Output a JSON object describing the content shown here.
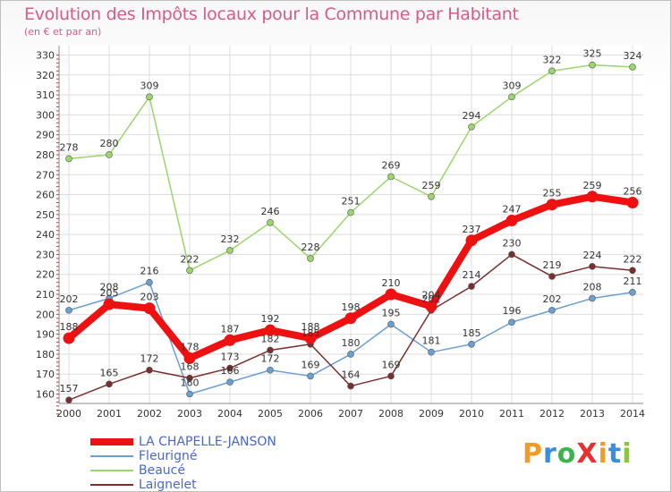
{
  "title": "Evolution des Impôts locaux pour la Commune par Habitant",
  "subtitle": "(en € et par an)",
  "logo": {
    "text": "ProXiti",
    "colors": [
      "#f29b22",
      "#3a8fd8",
      "#3ab54a",
      "#e8302f",
      "#f29b22",
      "#3a8fd8",
      "#8cc63f"
    ]
  },
  "chart_data": {
    "type": "line",
    "x": [
      "2000",
      "2001",
      "2002",
      "2003",
      "2004",
      "2005",
      "2006",
      "2007",
      "2008",
      "2009",
      "2010",
      "2011",
      "2012",
      "2013",
      "2014"
    ],
    "ylim": [
      150,
      330
    ],
    "yticks": [
      160,
      170,
      180,
      190,
      200,
      210,
      220,
      230,
      240,
      250,
      260,
      270,
      280,
      290,
      300,
      310,
      320,
      330
    ],
    "grid": true,
    "legend_position": "bottom-left",
    "series": [
      {
        "name": "LA CHAPELLE-JANSON",
        "color": "#ee1111",
        "values": [
          188,
          205,
          203,
          178,
          187,
          192,
          188,
          198,
          210,
          204,
          237,
          247,
          255,
          259,
          256
        ],
        "labels": [
          "188",
          "205",
          "203",
          "178",
          "187",
          "192",
          "188",
          "198",
          "210",
          "204",
          "237",
          "247",
          "255",
          "259",
          "256"
        ]
      },
      {
        "name": "Fleurigné",
        "color": "#6b9fd1",
        "values": [
          202,
          208,
          216,
          160,
          166,
          172,
          169,
          180,
          195,
          181,
          185,
          196,
          202,
          208,
          211
        ],
        "labels": [
          "202",
          "208",
          "216",
          "160",
          "166",
          "172",
          "169",
          "180",
          "195",
          "181",
          "185",
          "196",
          "202",
          "208",
          "211"
        ]
      },
      {
        "name": "Beaucé",
        "color": "#9ad66b",
        "values": [
          278,
          280,
          309,
          222,
          232,
          246,
          228,
          251,
          269,
          259,
          294,
          309,
          322,
          325,
          324
        ],
        "labels": [
          "278",
          "280",
          "309",
          "222",
          "232",
          "246",
          "228",
          "251",
          "269",
          "259",
          "294",
          "309",
          "322",
          "325",
          "324"
        ]
      },
      {
        "name": "Laignelet",
        "color": "#7a2e2e",
        "values": [
          157,
          165,
          172,
          168,
          173,
          182,
          185,
          164,
          169,
          202,
          214,
          230,
          219,
          224,
          222
        ],
        "labels": [
          "157",
          "165",
          "172",
          "168",
          "173",
          "182",
          "185",
          "164",
          "169",
          "202",
          "214",
          "230",
          "219",
          "224",
          "222"
        ]
      }
    ]
  }
}
